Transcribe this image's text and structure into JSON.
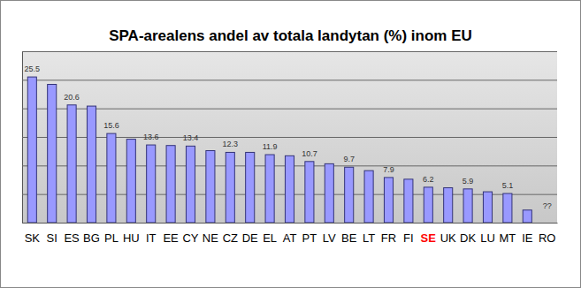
{
  "chart_data": {
    "type": "bar",
    "title": "SPA-arealens andel av totala landytan (%) inom EU",
    "categories": [
      "SK",
      "SI",
      "ES",
      "BG",
      "PL",
      "HU",
      "IT",
      "EE",
      "CY",
      "NE",
      "CZ",
      "DE",
      "EL",
      "AT",
      "PT",
      "LV",
      "BE",
      "LT",
      "FR",
      "FI",
      "SE",
      "UK",
      "DK",
      "LU",
      "MT",
      "IE",
      "RO"
    ],
    "values": [
      25.5,
      24.2,
      20.6,
      20.4,
      15.6,
      14.6,
      13.6,
      13.5,
      13.4,
      12.6,
      12.3,
      12.3,
      11.9,
      11.7,
      10.7,
      10.3,
      9.7,
      9.1,
      7.9,
      7.6,
      6.2,
      6.1,
      5.9,
      5.4,
      5.1,
      2.2,
      null
    ],
    "value_labels": [
      "25.5",
      null,
      "20.6",
      null,
      "15.6",
      null,
      "13.6",
      null,
      "13.4",
      null,
      "12.3",
      null,
      "11.9",
      null,
      "10.7",
      null,
      "9.7",
      null,
      "7.9",
      null,
      "6.2",
      null,
      "5.9",
      null,
      "5.1",
      null,
      "??"
    ],
    "color": "#9999ff",
    "ylim": [
      0,
      30
    ],
    "yticks": [
      0,
      5,
      10,
      15,
      20,
      25,
      30
    ],
    "grid": true,
    "data_labels": true,
    "tick_labels": "x"
  }
}
